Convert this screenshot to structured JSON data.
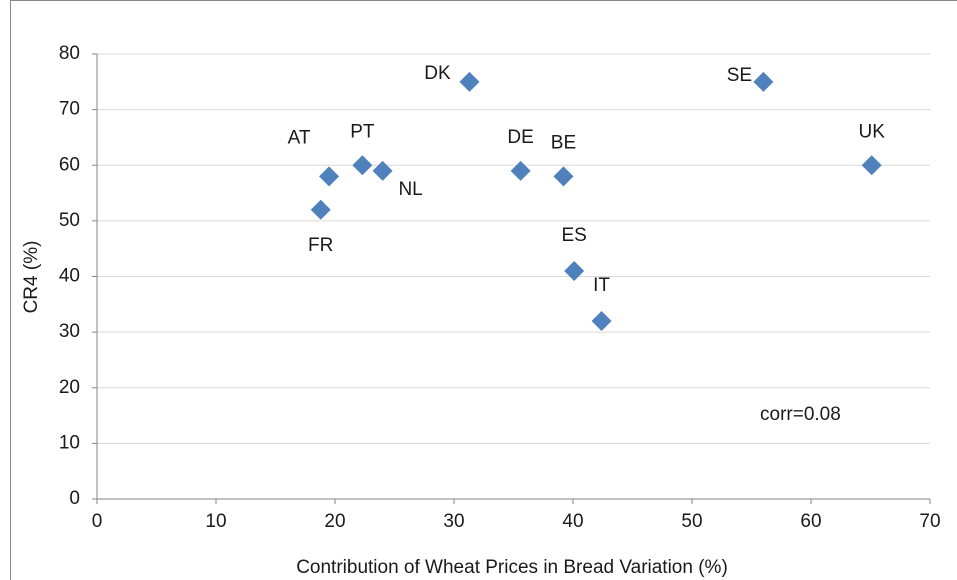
{
  "chart_data": {
    "type": "scatter",
    "x_label": "Contribution of Wheat Prices in Bread Variation  (%)",
    "y_label": "CR4 (%)",
    "annotation": "corr=0.08",
    "point_labels": [
      "DK",
      "SE",
      "UK",
      "PT",
      "AT",
      "NL",
      "FR",
      "DE",
      "BE",
      "ES",
      "IT"
    ],
    "x": [
      31.3,
      56.0,
      65.1,
      22.3,
      19.5,
      24.0,
      18.8,
      35.6,
      39.2,
      40.1,
      42.4
    ],
    "values": [
      75,
      75,
      60,
      60,
      58,
      59,
      52,
      59,
      58,
      41,
      32
    ],
    "color": "#4f81bd",
    "xlim": [
      0,
      70
    ],
    "xticks": [
      0,
      10,
      20,
      30,
      40,
      50,
      60,
      70
    ],
    "ylim": [
      0,
      80
    ],
    "yticks": [
      0,
      10,
      20,
      30,
      40,
      50,
      60,
      70,
      80
    ],
    "grid": true
  }
}
